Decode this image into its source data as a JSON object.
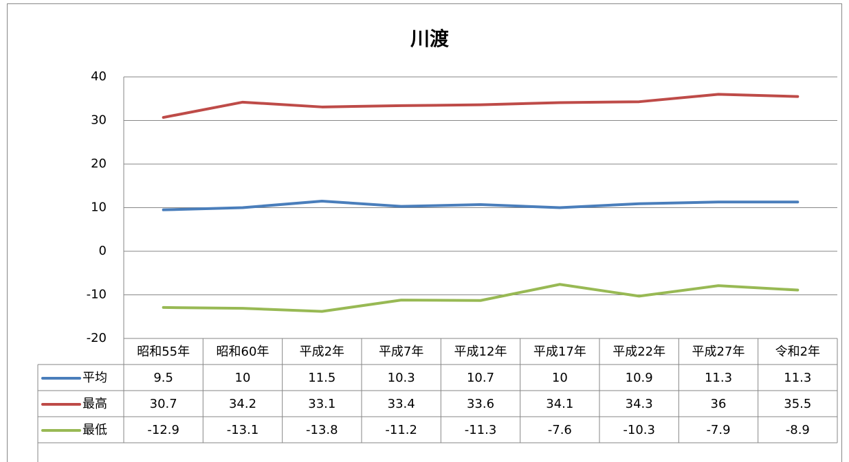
{
  "chart_data": {
    "type": "line",
    "title": "川渡",
    "categories": [
      "昭和55年",
      "昭和60年",
      "平成2年",
      "平成7年",
      "平成12年",
      "平成17年",
      "平成22年",
      "平成27年",
      "令和2年"
    ],
    "series": [
      {
        "name": "平均",
        "color": "#4a7ebb",
        "values": [
          9.5,
          10,
          11.5,
          10.3,
          10.7,
          10,
          10.9,
          11.3,
          11.3
        ]
      },
      {
        "name": "最高",
        "color": "#be4b48",
        "values": [
          30.7,
          34.2,
          33.1,
          33.4,
          33.6,
          34.1,
          34.3,
          36,
          35.5
        ]
      },
      {
        "name": "最低",
        "color": "#98b954",
        "values": [
          -12.9,
          -13.1,
          -13.8,
          -11.2,
          -11.3,
          -7.6,
          -10.3,
          -7.9,
          -8.9
        ]
      }
    ],
    "ylim": [
      -20,
      40
    ],
    "yticks": [
      -20,
      -10,
      0,
      10,
      20,
      30,
      40
    ],
    "grid": true,
    "data_table": true
  }
}
